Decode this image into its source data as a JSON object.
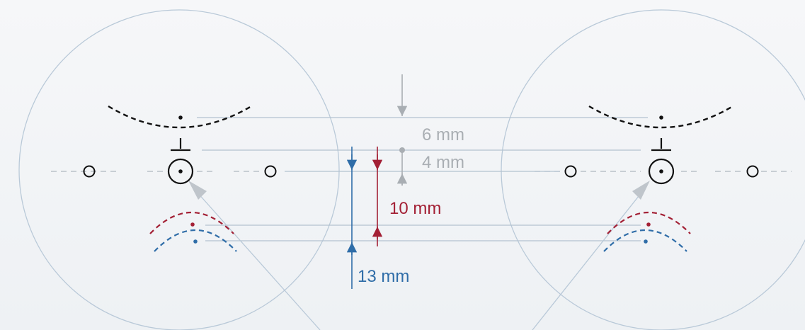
{
  "labels": {
    "d6": "6 mm",
    "d4": "4 mm",
    "d10": "10 mm",
    "d13": "13 mm"
  },
  "colors": {
    "background": "#f2f4f6",
    "circle": "#b9c9d8",
    "guide": "#b3c2d0",
    "gray": "#a9aeb3",
    "red": "#a32035",
    "blue": "#2f6da8",
    "black": "#111111"
  }
}
